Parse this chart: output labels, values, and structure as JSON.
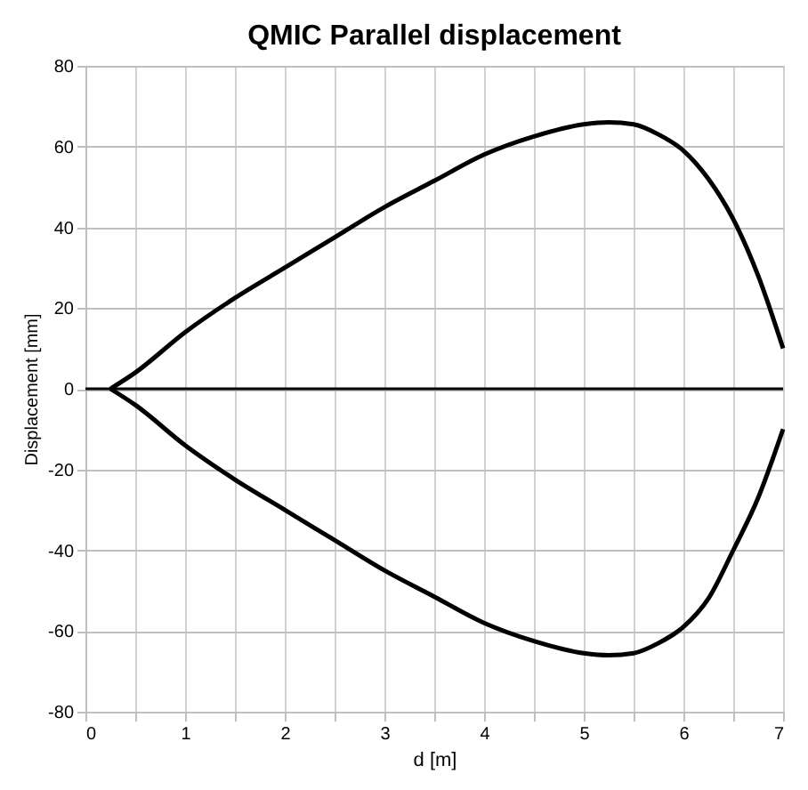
{
  "chart_data": {
    "type": "line",
    "title": "QMIC Parallel displacement",
    "xlabel": "d [m]",
    "ylabel": "Displacement [mm]",
    "xlim": [
      0,
      7
    ],
    "ylim": [
      -80,
      80
    ],
    "xticks": [
      0,
      {
        "value": 0.5,
        "label": null
      },
      1,
      {
        "value": 1.5,
        "label": null
      },
      2,
      {
        "value": 2.5,
        "label": null
      },
      3,
      {
        "value": 3.5,
        "label": null
      },
      4,
      {
        "value": 4.5,
        "label": null
      },
      5,
      {
        "value": 5.5,
        "label": null
      },
      6,
      {
        "value": 6.5,
        "label": null
      },
      7
    ],
    "yticks": [
      -80,
      -60,
      -40,
      -20,
      0,
      20,
      40,
      60,
      80
    ],
    "grid": true,
    "marker": "none",
    "line_style": "solid",
    "ref_lines": [
      {
        "axis": "y",
        "value": 0,
        "color": "#000000"
      }
    ],
    "series": [
      {
        "color": "#000000",
        "x": [
          0.25,
          0.5,
          1,
          1.5,
          2,
          2.5,
          3,
          3.5,
          4,
          4.5,
          5,
          5.25,
          5.5,
          5.75,
          6,
          6.25,
          6.5,
          6.75,
          7
        ],
        "values": [
          0,
          4,
          14,
          22.5,
          30,
          37.5,
          45,
          51.5,
          58,
          62.5,
          65.5,
          66,
          65.5,
          63,
          59,
          52,
          42,
          28,
          10
        ]
      },
      {
        "color": "#000000",
        "x": [
          0.25,
          0.5,
          1,
          1.5,
          2,
          2.5,
          3,
          3.5,
          4,
          4.5,
          5,
          5.25,
          5.5,
          5.75,
          6,
          6.25,
          6.5,
          6.75,
          7
        ],
        "values": [
          0,
          -4,
          -14,
          -22.5,
          -30,
          -37.5,
          -45,
          -51.5,
          -58,
          -62.5,
          -65.5,
          -66,
          -65.5,
          -63,
          -59,
          -52,
          -40,
          -27,
          -10
        ]
      }
    ]
  }
}
